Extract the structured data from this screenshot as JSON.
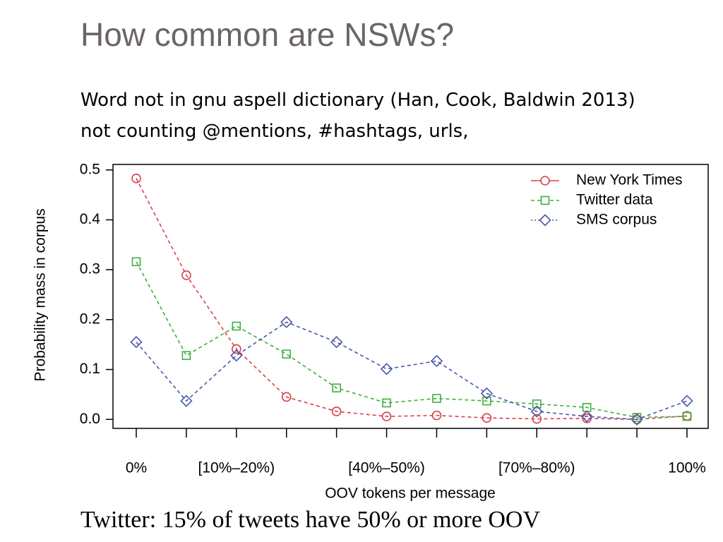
{
  "slide": {
    "title": "How common are NSWs?",
    "text": "Word not in gnu aspell dictionary (Han, Cook, Baldwin 2013) not counting @mentions, #hashtags, urls,",
    "footer": "Twitter: 15% of tweets have 50% or more OOV"
  },
  "chart_data": {
    "type": "line",
    "x_label": "OOV tokens per message",
    "y_label": "Probability mass in corpus",
    "categories": [
      "0%",
      null,
      "[10%–20%)",
      null,
      null,
      "[40%–50%)",
      null,
      null,
      "[70%–80%)",
      null,
      null,
      "100%"
    ],
    "series": [
      {
        "name": "New York Times",
        "color": "#d8404a",
        "marker": "circle",
        "values": [
          0.483,
          0.289,
          0.141,
          0.045,
          0.016,
          0.006,
          0.008,
          0.003,
          0.001,
          0.002,
          0.0,
          0.007
        ]
      },
      {
        "name": "Twitter data",
        "color": "#3fae3f",
        "marker": "square",
        "values": [
          0.316,
          0.128,
          0.187,
          0.131,
          0.063,
          0.033,
          0.042,
          0.037,
          0.031,
          0.024,
          0.004,
          0.006
        ]
      },
      {
        "name": "SMS corpus",
        "color": "#4a58a8",
        "marker": "diamond",
        "values": [
          0.155,
          0.037,
          0.128,
          0.195,
          0.155,
          0.101,
          0.117,
          0.052,
          0.016,
          0.006,
          0.0,
          0.037
        ]
      }
    ],
    "ylim": [
      -0.018,
      0.511
    ],
    "yticks": [
      {
        "value": 0,
        "label": "0.0"
      },
      0.1,
      0.2,
      0.3,
      0.4,
      0.5
    ],
    "grid": false,
    "legend": "top-right"
  }
}
